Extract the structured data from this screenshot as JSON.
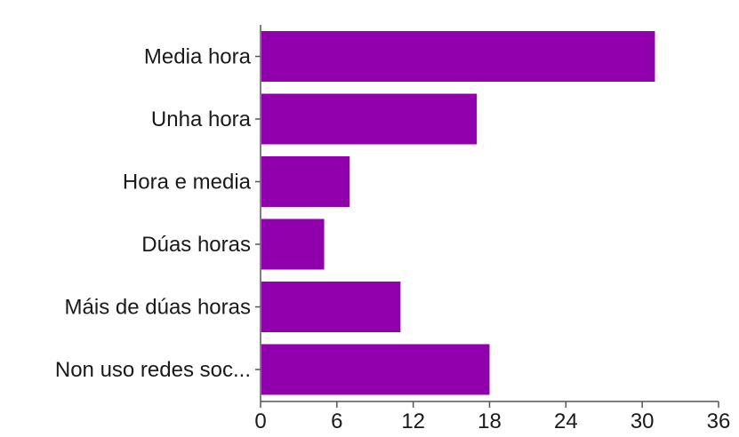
{
  "colors": {
    "bar": "#9000ad",
    "axis": "#555555",
    "text": "#1a1a1a",
    "background": "#ffffff"
  },
  "chart_data": {
    "type": "bar",
    "orientation": "horizontal",
    "title": "",
    "xlabel": "",
    "ylabel": "",
    "categories": [
      "Media hora",
      "Unha hora",
      "Hora e media",
      "Dúas horas",
      "Máis de dúas horas",
      "Non uso redes soc..."
    ],
    "values": [
      31,
      17,
      7,
      5,
      11,
      18
    ],
    "xlim": [
      0,
      36
    ],
    "xticks": [
      "0",
      "6",
      "12",
      "18",
      "24",
      "30",
      "36"
    ],
    "grid": false,
    "legend": "none"
  }
}
